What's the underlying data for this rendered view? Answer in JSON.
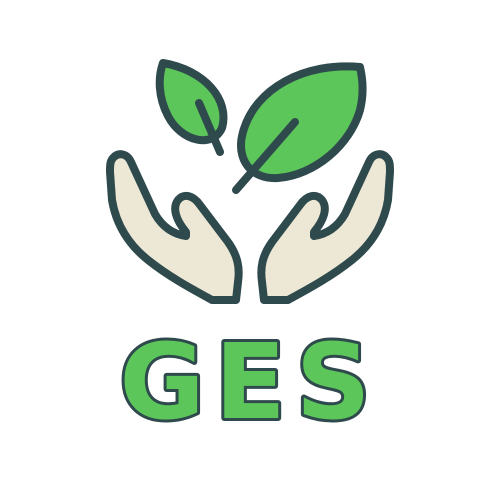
{
  "logo": {
    "text": "GES",
    "icon": "hands-holding-leaves-icon",
    "colors": {
      "leaf_green": "#5cc65a",
      "outline_dark": "#2f4a4d",
      "hand_fill": "#ece8d5",
      "background": "#ffffff"
    }
  }
}
